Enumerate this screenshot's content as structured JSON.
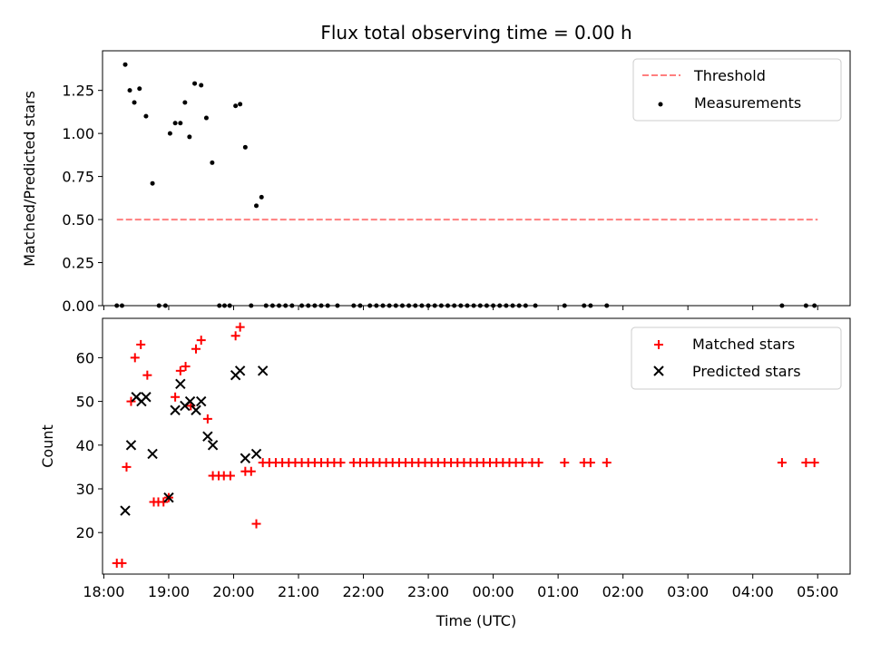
{
  "figure": {
    "title": "Flux total observing time = 0.00 h",
    "xlabel": "Time (UTC)"
  },
  "chart_data": [
    {
      "type": "scatter",
      "ylabel": "Matched/Predicted stars",
      "ylim": [
        0,
        1.48
      ],
      "yticks": [
        "0.00",
        "0.25",
        "0.50",
        "0.75",
        "1.00",
        "1.25"
      ],
      "yticks_values": [
        0,
        0.25,
        0.5,
        0.75,
        1.0,
        1.25
      ],
      "xlim_hours": [
        17.98,
        29.5
      ],
      "legend": {
        "placement": "top-right",
        "entries": [
          "Threshold",
          "Measurements"
        ]
      },
      "threshold": {
        "name": "Threshold",
        "y": 0.5,
        "x": [
          18.2,
          29.0
        ],
        "color": "#ff7f7f"
      },
      "measurements": {
        "name": "Measurements",
        "color": "#000000",
        "points": [
          [
            18.33,
            1.4
          ],
          [
            18.4,
            1.25
          ],
          [
            18.47,
            1.18
          ],
          [
            18.55,
            1.26
          ],
          [
            18.65,
            1.1
          ],
          [
            18.75,
            0.71
          ],
          [
            19.02,
            1.0
          ],
          [
            19.1,
            1.06
          ],
          [
            19.18,
            1.06
          ],
          [
            19.25,
            1.18
          ],
          [
            19.32,
            0.98
          ],
          [
            19.4,
            1.29
          ],
          [
            19.5,
            1.28
          ],
          [
            19.58,
            1.09
          ],
          [
            19.67,
            0.83
          ],
          [
            20.03,
            1.16
          ],
          [
            20.1,
            1.17
          ],
          [
            20.18,
            0.92
          ],
          [
            20.35,
            0.58
          ],
          [
            20.43,
            0.63
          ],
          [
            18.2,
            0
          ],
          [
            18.28,
            0
          ],
          [
            18.85,
            0
          ],
          [
            18.95,
            0
          ],
          [
            19.78,
            0
          ],
          [
            19.86,
            0
          ],
          [
            19.94,
            0
          ],
          [
            20.27,
            0
          ],
          [
            20.5,
            0
          ],
          [
            20.6,
            0
          ],
          [
            20.7,
            0
          ],
          [
            20.8,
            0
          ],
          [
            20.9,
            0
          ],
          [
            21.05,
            0
          ],
          [
            21.15,
            0
          ],
          [
            21.25,
            0
          ],
          [
            21.35,
            0
          ],
          [
            21.45,
            0
          ],
          [
            21.6,
            0
          ],
          [
            21.85,
            0
          ],
          [
            21.95,
            0
          ],
          [
            22.1,
            0
          ],
          [
            22.2,
            0
          ],
          [
            22.3,
            0
          ],
          [
            22.4,
            0
          ],
          [
            22.5,
            0
          ],
          [
            22.6,
            0
          ],
          [
            22.7,
            0
          ],
          [
            22.8,
            0
          ],
          [
            22.9,
            0
          ],
          [
            23.0,
            0
          ],
          [
            23.1,
            0
          ],
          [
            23.2,
            0
          ],
          [
            23.3,
            0
          ],
          [
            23.4,
            0
          ],
          [
            23.5,
            0
          ],
          [
            23.6,
            0
          ],
          [
            23.7,
            0
          ],
          [
            23.8,
            0
          ],
          [
            23.9,
            0
          ],
          [
            24.0,
            0
          ],
          [
            24.1,
            0
          ],
          [
            24.2,
            0
          ],
          [
            24.3,
            0
          ],
          [
            24.4,
            0
          ],
          [
            24.5,
            0
          ],
          [
            24.65,
            0
          ],
          [
            25.1,
            0
          ],
          [
            25.4,
            0
          ],
          [
            25.5,
            0
          ],
          [
            25.75,
            0
          ],
          [
            28.45,
            0
          ],
          [
            28.82,
            0
          ],
          [
            28.95,
            0
          ]
        ]
      }
    },
    {
      "type": "scatter",
      "ylabel": "Count",
      "ylim": [
        10.5,
        69
      ],
      "yticks": [
        "20",
        "30",
        "40",
        "50",
        "60"
      ],
      "yticks_values": [
        20,
        30,
        40,
        50,
        60
      ],
      "xlim_hours": [
        17.98,
        29.5
      ],
      "xticks": [
        "18:00",
        "19:00",
        "20:00",
        "21:00",
        "22:00",
        "23:00",
        "00:00",
        "01:00",
        "02:00",
        "03:00",
        "04:00",
        "05:00"
      ],
      "xticks_hours": [
        18,
        19,
        20,
        21,
        22,
        23,
        24,
        25,
        26,
        27,
        28,
        29
      ],
      "legend": {
        "placement": "top-right",
        "entries": [
          "Matched stars",
          "Predicted stars"
        ]
      },
      "series": [
        {
          "name": "Matched stars",
          "marker": "plus",
          "color": "#ff0000",
          "points": [
            [
              18.2,
              13
            ],
            [
              18.28,
              13
            ],
            [
              18.35,
              35
            ],
            [
              18.42,
              50
            ],
            [
              18.48,
              60
            ],
            [
              18.57,
              63
            ],
            [
              18.67,
              56
            ],
            [
              18.77,
              27
            ],
            [
              18.84,
              27
            ],
            [
              18.92,
              27
            ],
            [
              19.0,
              28
            ],
            [
              19.1,
              51
            ],
            [
              19.18,
              57
            ],
            [
              19.26,
              58
            ],
            [
              19.34,
              49
            ],
            [
              19.42,
              62
            ],
            [
              19.5,
              64
            ],
            [
              19.6,
              46
            ],
            [
              19.68,
              33
            ],
            [
              19.77,
              33
            ],
            [
              19.85,
              33
            ],
            [
              19.95,
              33
            ],
            [
              20.03,
              65
            ],
            [
              20.1,
              67
            ],
            [
              20.18,
              34
            ],
            [
              20.27,
              34
            ],
            [
              20.35,
              22
            ],
            [
              20.45,
              36
            ],
            [
              20.55,
              36
            ],
            [
              20.65,
              36
            ],
            [
              20.75,
              36
            ],
            [
              20.85,
              36
            ],
            [
              20.95,
              36
            ],
            [
              21.05,
              36
            ],
            [
              21.15,
              36
            ],
            [
              21.25,
              36
            ],
            [
              21.35,
              36
            ],
            [
              21.45,
              36
            ],
            [
              21.55,
              36
            ],
            [
              21.65,
              36
            ],
            [
              21.85,
              36
            ],
            [
              21.95,
              36
            ],
            [
              22.05,
              36
            ],
            [
              22.15,
              36
            ],
            [
              22.25,
              36
            ],
            [
              22.35,
              36
            ],
            [
              22.45,
              36
            ],
            [
              22.55,
              36
            ],
            [
              22.65,
              36
            ],
            [
              22.75,
              36
            ],
            [
              22.85,
              36
            ],
            [
              22.95,
              36
            ],
            [
              23.05,
              36
            ],
            [
              23.15,
              36
            ],
            [
              23.25,
              36
            ],
            [
              23.35,
              36
            ],
            [
              23.45,
              36
            ],
            [
              23.55,
              36
            ],
            [
              23.65,
              36
            ],
            [
              23.75,
              36
            ],
            [
              23.85,
              36
            ],
            [
              23.95,
              36
            ],
            [
              24.05,
              36
            ],
            [
              24.15,
              36
            ],
            [
              24.25,
              36
            ],
            [
              24.35,
              36
            ],
            [
              24.45,
              36
            ],
            [
              24.6,
              36
            ],
            [
              24.7,
              36
            ],
            [
              25.1,
              36
            ],
            [
              25.4,
              36
            ],
            [
              25.5,
              36
            ],
            [
              25.75,
              36
            ],
            [
              28.45,
              36
            ],
            [
              28.82,
              36
            ],
            [
              28.95,
              36
            ]
          ]
        },
        {
          "name": "Predicted stars",
          "marker": "x",
          "color": "#000000",
          "points": [
            [
              18.33,
              25
            ],
            [
              18.42,
              40
            ],
            [
              18.5,
              51
            ],
            [
              18.58,
              50
            ],
            [
              18.65,
              51
            ],
            [
              18.75,
              38
            ],
            [
              19.0,
              28
            ],
            [
              19.1,
              48
            ],
            [
              19.18,
              54
            ],
            [
              19.25,
              49
            ],
            [
              19.33,
              50
            ],
            [
              19.42,
              48
            ],
            [
              19.5,
              50
            ],
            [
              19.6,
              42
            ],
            [
              19.68,
              40
            ],
            [
              20.03,
              56
            ],
            [
              20.1,
              57
            ],
            [
              20.18,
              37
            ],
            [
              20.35,
              38
            ],
            [
              20.45,
              57
            ]
          ]
        }
      ]
    }
  ]
}
